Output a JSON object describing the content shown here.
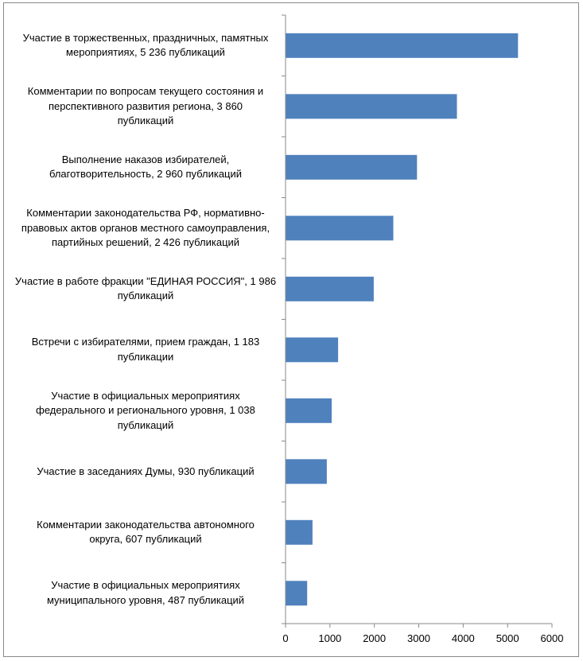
{
  "chart_data": {
    "type": "bar",
    "orientation": "horizontal",
    "title": "",
    "xlabel": "",
    "ylabel": "",
    "xlim": [
      0,
      6000
    ],
    "x_ticks": [
      0,
      1000,
      2000,
      3000,
      4000,
      5000,
      6000
    ],
    "x_tick_labels": [
      "0",
      "1000",
      "2000",
      "3000",
      "4000",
      "5000",
      "6000"
    ],
    "grid": false,
    "legend": "none",
    "bar_color": "#4f81bd",
    "categories": [
      "Участие в торжественных, праздничных, памятных\nмероприятиях, 5 236 публикаций",
      "Комментарии по вопросам текущего состояния и\nперспективного развития региона, 3 860\nпубликаций",
      "Выполнение наказов избирателей,\nблаготворительность, 2 960 публикаций",
      "Комментарии законодательства РФ, нормативно-\nправовых актов органов местного самоуправления,\nпартийных решений, 2 426 публикаций",
      "Участие в работе фракции \"ЕДИНАЯ РОССИЯ\", 1 986\nпубликаций",
      "Встречи с избирателями, прием граждан, 1 183\nпубликации",
      "Участие  в официальных мероприятиях\nфедерального и регионального уровня, 1 038\nпубликаций",
      "Участие в заседаниях Думы, 930 публикаций",
      "Комментарии законодательства автономного\nокруга, 607 публикаций",
      "Участие в официальных мероприятиях\nмуниципального уровня, 487 публикаций"
    ],
    "values": [
      5236,
      3860,
      2960,
      2426,
      1986,
      1183,
      1038,
      930,
      607,
      487
    ]
  }
}
